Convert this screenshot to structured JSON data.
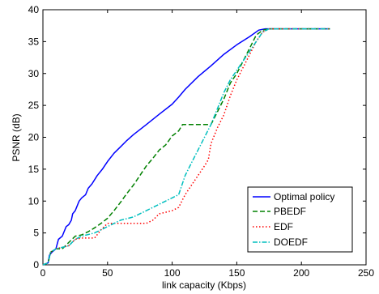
{
  "chart_data": {
    "type": "line",
    "title": "",
    "xlabel": "link capacity (Kbps)",
    "ylabel": "PSNR (dB)",
    "xlim": [
      0,
      250
    ],
    "ylim": [
      0,
      40
    ],
    "xticks": [
      "0",
      "50",
      "100",
      "150",
      "200",
      "250"
    ],
    "yticks": [
      "0",
      "5",
      "10",
      "15",
      "20",
      "25",
      "30",
      "35",
      "40"
    ],
    "grid": false,
    "legend_position": "bottom-right",
    "series": [
      {
        "name": "Optimal policy",
        "color": "#0000ff",
        "dash": "solid",
        "points": [
          [
            0,
            0
          ],
          [
            4,
            0.3
          ],
          [
            5,
            1.5
          ],
          [
            7,
            2
          ],
          [
            10,
            2.5
          ],
          [
            12,
            4
          ],
          [
            15,
            4.5
          ],
          [
            16,
            5
          ],
          [
            18,
            6
          ],
          [
            20,
            6.3
          ],
          [
            22,
            7
          ],
          [
            23,
            8
          ],
          [
            25,
            8.5
          ],
          [
            27,
            9.5
          ],
          [
            28,
            10
          ],
          [
            30,
            10.5
          ],
          [
            33,
            11
          ],
          [
            35,
            12
          ],
          [
            38,
            12.7
          ],
          [
            42,
            14
          ],
          [
            46,
            15
          ],
          [
            50,
            16.2
          ],
          [
            55,
            17.5
          ],
          [
            60,
            18.5
          ],
          [
            65,
            19.5
          ],
          [
            70,
            20.4
          ],
          [
            80,
            22
          ],
          [
            90,
            23.6
          ],
          [
            100,
            25.2
          ],
          [
            105,
            26.3
          ],
          [
            110,
            27.5
          ],
          [
            120,
            29.5
          ],
          [
            130,
            31.2
          ],
          [
            140,
            33
          ],
          [
            150,
            34.5
          ],
          [
            160,
            35.8
          ],
          [
            167,
            36.8
          ],
          [
            172,
            37
          ],
          [
            222,
            37
          ]
        ]
      },
      {
        "name": "PBEDF",
        "color": "#008000",
        "dash": "6,3",
        "points": [
          [
            0,
            0
          ],
          [
            4,
            0.3
          ],
          [
            6,
            2
          ],
          [
            10,
            2.5
          ],
          [
            15,
            2.5
          ],
          [
            20,
            3.5
          ],
          [
            25,
            4.5
          ],
          [
            30,
            4.7
          ],
          [
            35,
            5.2
          ],
          [
            40,
            5.8
          ],
          [
            45,
            6.5
          ],
          [
            50,
            7.3
          ],
          [
            55,
            8.5
          ],
          [
            60,
            9.8
          ],
          [
            65,
            11.2
          ],
          [
            70,
            12.5
          ],
          [
            75,
            14
          ],
          [
            80,
            15.5
          ],
          [
            85,
            16.7
          ],
          [
            90,
            18
          ],
          [
            95,
            18.8
          ],
          [
            100,
            20.2
          ],
          [
            105,
            21
          ],
          [
            108,
            22
          ],
          [
            115,
            22
          ],
          [
            122,
            22
          ],
          [
            125,
            22
          ],
          [
            130,
            22
          ],
          [
            135,
            24
          ],
          [
            140,
            26
          ],
          [
            145,
            28.5
          ],
          [
            150,
            30
          ],
          [
            155,
            32
          ],
          [
            160,
            34
          ],
          [
            165,
            36
          ],
          [
            170,
            36.8
          ],
          [
            175,
            37
          ],
          [
            222,
            37
          ]
        ]
      },
      {
        "name": "EDF",
        "color": "#ff0000",
        "dash": "1.5,2.5",
        "points": [
          [
            0,
            0
          ],
          [
            4,
            0.3
          ],
          [
            6,
            2
          ],
          [
            10,
            2.5
          ],
          [
            20,
            3
          ],
          [
            25,
            4
          ],
          [
            30,
            4.2
          ],
          [
            40,
            4.2
          ],
          [
            45,
            5.5
          ],
          [
            50,
            6.5
          ],
          [
            60,
            6.5
          ],
          [
            70,
            6.5
          ],
          [
            80,
            6.5
          ],
          [
            85,
            7
          ],
          [
            90,
            8
          ],
          [
            100,
            8.5
          ],
          [
            105,
            9
          ],
          [
            110,
            11
          ],
          [
            115,
            12.5
          ],
          [
            120,
            14
          ],
          [
            125,
            15.5
          ],
          [
            128,
            16.5
          ],
          [
            130,
            19
          ],
          [
            135,
            21.5
          ],
          [
            140,
            23.5
          ],
          [
            145,
            26.5
          ],
          [
            150,
            29
          ],
          [
            155,
            31
          ],
          [
            160,
            33
          ],
          [
            165,
            35
          ],
          [
            170,
            36.5
          ],
          [
            175,
            37
          ],
          [
            222,
            37
          ]
        ]
      },
      {
        "name": "DOEDF",
        "color": "#00bfbf",
        "dash": "6,2,1.5,2",
        "points": [
          [
            0,
            0
          ],
          [
            4,
            0.3
          ],
          [
            6,
            2
          ],
          [
            10,
            2.5
          ],
          [
            20,
            3
          ],
          [
            25,
            4
          ],
          [
            30,
            4.5
          ],
          [
            40,
            5
          ],
          [
            50,
            6
          ],
          [
            60,
            7
          ],
          [
            70,
            7.5
          ],
          [
            80,
            8.5
          ],
          [
            90,
            9.5
          ],
          [
            100,
            10.5
          ],
          [
            105,
            11
          ],
          [
            110,
            14
          ],
          [
            115,
            16
          ],
          [
            120,
            18
          ],
          [
            125,
            20
          ],
          [
            130,
            22
          ],
          [
            135,
            24.5
          ],
          [
            140,
            27
          ],
          [
            145,
            29
          ],
          [
            150,
            30.5
          ],
          [
            155,
            32
          ],
          [
            160,
            33.5
          ],
          [
            165,
            35
          ],
          [
            170,
            36.5
          ],
          [
            175,
            37
          ],
          [
            222,
            37
          ]
        ]
      }
    ]
  }
}
